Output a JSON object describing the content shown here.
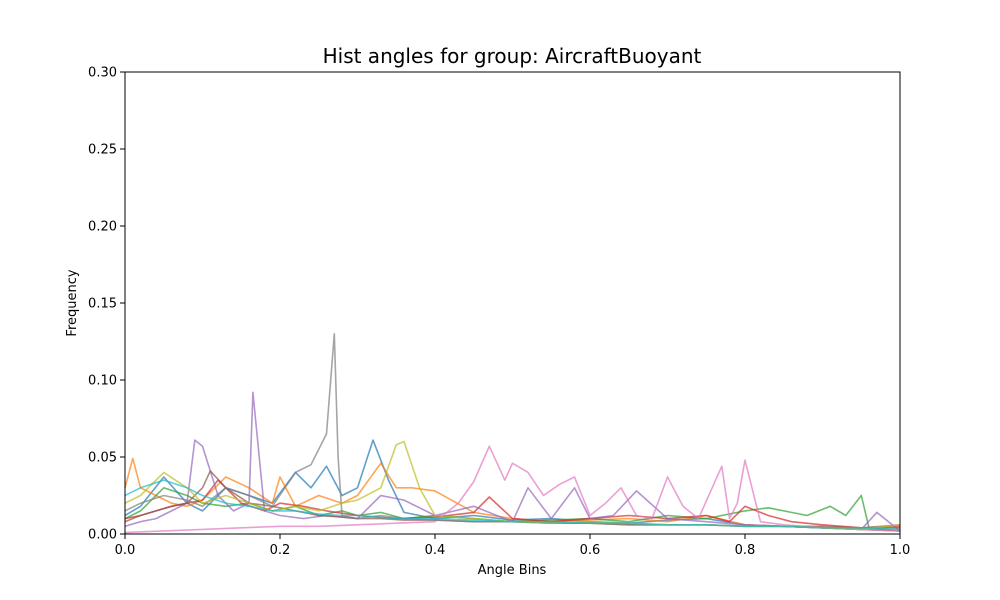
{
  "chart_data": {
    "type": "line",
    "title": "Hist angles for group: AircraftBuoyant",
    "xlabel": "Angle Bins",
    "ylabel": "Frequency",
    "xlim": [
      0,
      1
    ],
    "ylim": [
      0,
      0.3
    ],
    "xticks": [
      0.0,
      0.2,
      0.4,
      0.6,
      0.8,
      1.0
    ],
    "xtick_labels": [
      "0.0",
      "0.2",
      "0.4",
      "0.6",
      "0.8",
      "1.0"
    ],
    "yticks": [
      0.0,
      0.05,
      0.1,
      0.15,
      0.2,
      0.25,
      0.3
    ],
    "ytick_labels": [
      "0.00",
      "0.05",
      "0.10",
      "0.15",
      "0.20",
      "0.25",
      "0.30"
    ],
    "grid": false,
    "legend": "none",
    "series": [
      {
        "color": "#1f77b4",
        "x": [
          0,
          0.02,
          0.05,
          0.08,
          0.1,
          0.13,
          0.16,
          0.19,
          0.22,
          0.24,
          0.26,
          0.28,
          0.3,
          0.32,
          0.34,
          0.36,
          0.38,
          0.4,
          0.45,
          0.5,
          0.55,
          0.6,
          0.65,
          0.7,
          0.75,
          0.8,
          0.85,
          0.9,
          0.95,
          1.0
        ],
        "y": [
          0.012,
          0.018,
          0.037,
          0.02,
          0.015,
          0.03,
          0.025,
          0.02,
          0.04,
          0.03,
          0.044,
          0.025,
          0.03,
          0.061,
          0.035,
          0.014,
          0.012,
          0.01,
          0.012,
          0.009,
          0.01,
          0.008,
          0.007,
          0.009,
          0.01,
          0.006,
          0.005,
          0.004,
          0.003,
          0.002
        ]
      },
      {
        "color": "#ff7f0e",
        "x": [
          0,
          0.01,
          0.02,
          0.04,
          0.06,
          0.08,
          0.1,
          0.13,
          0.16,
          0.19,
          0.2,
          0.22,
          0.25,
          0.28,
          0.3,
          0.33,
          0.35,
          0.37,
          0.4,
          0.45,
          0.5,
          0.55,
          0.6,
          0.65,
          0.7,
          0.75,
          0.8,
          0.85,
          0.9,
          0.95,
          1.0
        ],
        "y": [
          0.03,
          0.049,
          0.03,
          0.025,
          0.02,
          0.018,
          0.022,
          0.037,
          0.03,
          0.02,
          0.037,
          0.018,
          0.025,
          0.02,
          0.025,
          0.046,
          0.03,
          0.03,
          0.028,
          0.014,
          0.01,
          0.008,
          0.009,
          0.01,
          0.008,
          0.012,
          0.006,
          0.005,
          0.004,
          0.003,
          0.002
        ]
      },
      {
        "color": "#2ca02c",
        "x": [
          0,
          0.02,
          0.05,
          0.08,
          0.1,
          0.13,
          0.16,
          0.19,
          0.22,
          0.25,
          0.28,
          0.3,
          0.33,
          0.36,
          0.4,
          0.45,
          0.5,
          0.55,
          0.6,
          0.65,
          0.7,
          0.75,
          0.8,
          0.83,
          0.86,
          0.88,
          0.91,
          0.93,
          0.95,
          0.96,
          0.98,
          1.0
        ],
        "y": [
          0.01,
          0.015,
          0.03,
          0.025,
          0.02,
          0.018,
          0.02,
          0.015,
          0.018,
          0.012,
          0.015,
          0.012,
          0.014,
          0.01,
          0.012,
          0.01,
          0.008,
          0.009,
          0.01,
          0.008,
          0.012,
          0.01,
          0.015,
          0.017,
          0.014,
          0.012,
          0.018,
          0.012,
          0.025,
          0.004,
          0.003,
          0.002
        ]
      },
      {
        "color": "#d62728",
        "x": [
          0,
          0.02,
          0.04,
          0.06,
          0.08,
          0.1,
          0.12,
          0.15,
          0.18,
          0.2,
          0.23,
          0.26,
          0.3,
          0.35,
          0.4,
          0.45,
          0.47,
          0.5,
          0.55,
          0.6,
          0.65,
          0.7,
          0.75,
          0.78,
          0.8,
          0.83,
          0.86,
          0.9,
          0.95,
          1.0
        ],
        "y": [
          0.01,
          0.012,
          0.015,
          0.018,
          0.02,
          0.022,
          0.035,
          0.02,
          0.015,
          0.02,
          0.018,
          0.015,
          0.012,
          0.01,
          0.011,
          0.014,
          0.024,
          0.01,
          0.008,
          0.01,
          0.012,
          0.01,
          0.012,
          0.008,
          0.018,
          0.012,
          0.008,
          0.006,
          0.004,
          0.005
        ]
      },
      {
        "color": "#9467bd",
        "x": [
          0,
          0.02,
          0.04,
          0.06,
          0.08,
          0.09,
          0.1,
          0.12,
          0.14,
          0.16,
          0.165,
          0.18,
          0.2,
          0.23,
          0.26,
          0.3,
          0.33,
          0.36,
          0.4,
          0.45,
          0.5,
          0.52,
          0.55,
          0.58,
          0.6,
          0.63,
          0.66,
          0.7,
          0.75,
          0.8,
          0.85,
          0.9,
          0.95,
          0.97,
          1.0
        ],
        "y": [
          0.005,
          0.008,
          0.01,
          0.015,
          0.02,
          0.061,
          0.057,
          0.025,
          0.015,
          0.02,
          0.092,
          0.015,
          0.012,
          0.01,
          0.012,
          0.01,
          0.025,
          0.022,
          0.012,
          0.018,
          0.008,
          0.03,
          0.01,
          0.03,
          0.01,
          0.012,
          0.028,
          0.01,
          0.008,
          0.006,
          0.005,
          0.004,
          0.003,
          0.014,
          0.002
        ]
      },
      {
        "color": "#8c564b",
        "x": [
          0,
          0.02,
          0.04,
          0.06,
          0.08,
          0.1,
          0.11,
          0.13,
          0.16,
          0.19,
          0.22,
          0.25,
          0.28,
          0.3,
          0.33,
          0.36,
          0.4,
          0.45,
          0.5,
          0.55,
          0.6,
          0.65,
          0.7,
          0.75,
          0.8,
          0.85,
          0.9,
          0.95,
          1.0
        ],
        "y": [
          0.008,
          0.012,
          0.015,
          0.018,
          0.02,
          0.03,
          0.041,
          0.03,
          0.02,
          0.018,
          0.015,
          0.012,
          0.011,
          0.01,
          0.01,
          0.009,
          0.009,
          0.008,
          0.008,
          0.007,
          0.007,
          0.006,
          0.006,
          0.006,
          0.005,
          0.005,
          0.005,
          0.004,
          0.004
        ]
      },
      {
        "color": "#e377c2",
        "x": [
          0,
          0.05,
          0.1,
          0.15,
          0.2,
          0.25,
          0.3,
          0.35,
          0.4,
          0.43,
          0.45,
          0.47,
          0.49,
          0.5,
          0.52,
          0.54,
          0.56,
          0.58,
          0.6,
          0.62,
          0.64,
          0.66,
          0.68,
          0.7,
          0.72,
          0.74,
          0.77,
          0.78,
          0.79,
          0.8,
          0.82,
          0.85,
          0.9,
          0.95,
          1.0
        ],
        "y": [
          0.001,
          0.002,
          0.003,
          0.004,
          0.005,
          0.005,
          0.006,
          0.007,
          0.008,
          0.02,
          0.034,
          0.057,
          0.035,
          0.046,
          0.04,
          0.025,
          0.032,
          0.037,
          0.012,
          0.02,
          0.03,
          0.012,
          0.01,
          0.037,
          0.018,
          0.01,
          0.044,
          0.01,
          0.02,
          0.048,
          0.008,
          0.006,
          0.004,
          0.003,
          0.002
        ]
      },
      {
        "color": "#7f7f7f",
        "x": [
          0,
          0.02,
          0.05,
          0.08,
          0.1,
          0.13,
          0.16,
          0.19,
          0.22,
          0.24,
          0.26,
          0.27,
          0.275,
          0.28,
          0.3,
          0.33,
          0.36,
          0.4,
          0.45,
          0.5,
          0.55,
          0.6,
          0.65,
          0.7,
          0.75,
          0.8,
          0.85,
          0.9,
          0.95,
          1.0
        ],
        "y": [
          0.015,
          0.02,
          0.025,
          0.022,
          0.018,
          0.03,
          0.025,
          0.018,
          0.04,
          0.045,
          0.065,
          0.13,
          0.05,
          0.012,
          0.01,
          0.012,
          0.01,
          0.009,
          0.008,
          0.008,
          0.007,
          0.007,
          0.006,
          0.006,
          0.006,
          0.005,
          0.005,
          0.004,
          0.004,
          0.006
        ]
      },
      {
        "color": "#bcbd22",
        "x": [
          0,
          0.02,
          0.05,
          0.08,
          0.1,
          0.13,
          0.16,
          0.19,
          0.22,
          0.25,
          0.28,
          0.3,
          0.33,
          0.35,
          0.36,
          0.38,
          0.4,
          0.45,
          0.5,
          0.55,
          0.6,
          0.65,
          0.7,
          0.75,
          0.8,
          0.85,
          0.9,
          0.95,
          1.0
        ],
        "y": [
          0.02,
          0.025,
          0.04,
          0.03,
          0.02,
          0.025,
          0.02,
          0.015,
          0.018,
          0.015,
          0.02,
          0.022,
          0.03,
          0.058,
          0.06,
          0.03,
          0.012,
          0.01,
          0.008,
          0.007,
          0.008,
          0.007,
          0.006,
          0.006,
          0.005,
          0.005,
          0.004,
          0.003,
          0.006
        ]
      },
      {
        "color": "#17becf",
        "x": [
          0,
          0.02,
          0.05,
          0.08,
          0.1,
          0.13,
          0.16,
          0.19,
          0.22,
          0.25,
          0.28,
          0.3,
          0.35,
          0.4,
          0.45,
          0.5,
          0.55,
          0.6,
          0.65,
          0.7,
          0.75,
          0.8,
          0.85,
          0.9,
          0.95,
          1.0
        ],
        "y": [
          0.025,
          0.03,
          0.035,
          0.03,
          0.025,
          0.02,
          0.018,
          0.015,
          0.015,
          0.013,
          0.012,
          0.012,
          0.01,
          0.01,
          0.009,
          0.008,
          0.008,
          0.007,
          0.007,
          0.006,
          0.006,
          0.005,
          0.005,
          0.004,
          0.004,
          0.003
        ]
      }
    ]
  }
}
